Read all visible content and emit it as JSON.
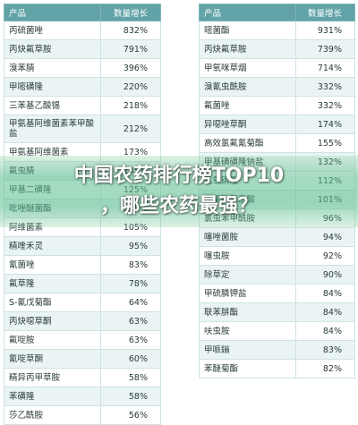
{
  "left_table": {
    "header": {
      "name": "产品",
      "value": "数量增长"
    },
    "rows": [
      {
        "name": "丙硫菌唑",
        "value": "832%"
      },
      {
        "name": "丙炔氟草胺",
        "value": "791%"
      },
      {
        "name": "溴苯腈",
        "value": "396%"
      },
      {
        "name": "甲嘧磺隆",
        "value": "220%"
      },
      {
        "name": "三苯基乙酸锡",
        "value": "218%"
      },
      {
        "name": "甲氨基阿维菌素苯甲酸盐",
        "value": "212%"
      },
      {
        "name": "甲氨基阿维菌素",
        "value": "173%"
      },
      {
        "name": "氟虫腈",
        "value": "145%"
      },
      {
        "name": "甲基二磺隆",
        "value": "125%"
      },
      {
        "name": "吡唑醚菌酯",
        "value": "118%"
      },
      {
        "name": "阿维菌素",
        "value": "105%"
      },
      {
        "name": "精喹禾灵",
        "value": "95%"
      },
      {
        "name": "氰菌唑",
        "value": "83%"
      },
      {
        "name": "氟草隆",
        "value": "78%"
      },
      {
        "name": "S-氰戊菊酯",
        "value": "64%"
      },
      {
        "name": "丙炔噁草酮",
        "value": "63%"
      },
      {
        "name": "氟啶胺",
        "value": "63%"
      },
      {
        "name": "氰啶草酮",
        "value": "60%"
      },
      {
        "name": "精异丙甲草胺",
        "value": "58%"
      },
      {
        "name": "苯磺隆",
        "value": "58%"
      },
      {
        "name": "莎乙酰胺",
        "value": "56%"
      }
    ]
  },
  "right_table": {
    "header": {
      "name": "产品",
      "value": "数量增长"
    },
    "rows": [
      {
        "name": "嘧菌酯",
        "value": "931%"
      },
      {
        "name": "丙炔氟草胺",
        "value": "739%"
      },
      {
        "name": "甲氧咪草烟",
        "value": "714%"
      },
      {
        "name": "溴氰虫酰胺",
        "value": "332%"
      },
      {
        "name": "氟菌唑",
        "value": "332%"
      },
      {
        "name": "异噁唑草酮",
        "value": "174%"
      },
      {
        "name": "高效氯氟氰菊酯",
        "value": "155%"
      },
      {
        "name": "甲基碘磺隆钠盐",
        "value": "132%"
      },
      {
        "name": "乙氧磺隆",
        "value": "112%"
      },
      {
        "name": "氯氟吡氧乙酸",
        "value": "101%"
      },
      {
        "name": "氯虫苯甲酰胺",
        "value": "96%"
      },
      {
        "name": "噻唑菌胺",
        "value": "94%"
      },
      {
        "name": "噻虫胺",
        "value": "92%"
      },
      {
        "name": "除草定",
        "value": "90%"
      },
      {
        "name": "甲硫膦钾盐",
        "value": "84%"
      },
      {
        "name": "联苯肼酯",
        "value": "84%"
      },
      {
        "name": "呋虫胺",
        "value": "84%"
      },
      {
        "name": "甲哌鎓",
        "value": "83%"
      },
      {
        "name": "苯醚菊酯",
        "value": "82%"
      }
    ]
  },
  "headline": {
    "line1": "中国农药排行榜TOP10",
    "line2": "，哪些农药最强？"
  }
}
